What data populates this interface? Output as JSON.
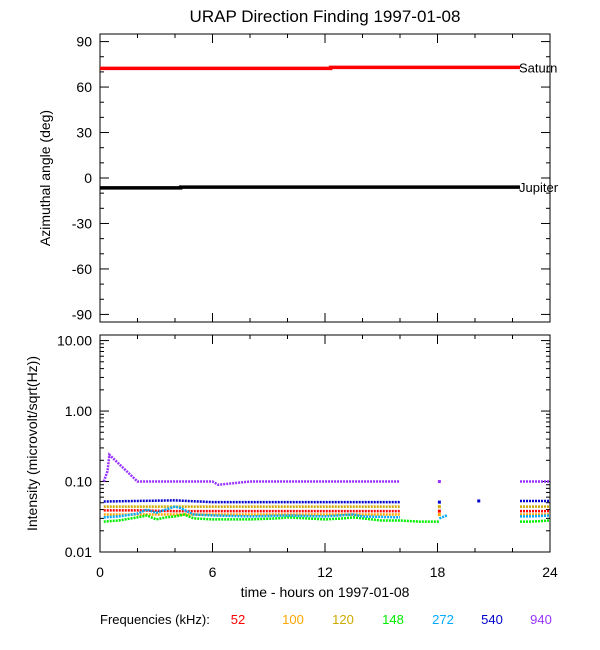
{
  "figure": {
    "title": "URAP Direction Finding  1997-01-08",
    "xlabel": "time - hours on 1997-01-08",
    "legend_label": "Frequencies (kHz):"
  },
  "chart_data": [
    {
      "type": "line",
      "title": "URAP Direction Finding  1997-01-08",
      "ylabel": "Azimuthal angle (deg)",
      "xlabel": "",
      "xlim": [
        0,
        24
      ],
      "ylim": [
        -95,
        95
      ],
      "x_ticks": [
        0,
        6,
        12,
        18,
        24
      ],
      "y_ticks": [
        90,
        60,
        30,
        0,
        -30,
        -60,
        -90
      ],
      "y_tick_labels": [
        "90",
        "60",
        "30",
        "0",
        "-30",
        "-60",
        "-90"
      ],
      "grid": false,
      "series": [
        {
          "name": "Saturn",
          "color": "#ff0000",
          "x": [
            0,
            12.3,
            12.3,
            22.4
          ],
          "y": [
            72.3,
            72.3,
            73.0,
            73.0
          ]
        },
        {
          "name": "Jupiter",
          "color": "#000000",
          "x": [
            0,
            4.3,
            4.3,
            22.4
          ],
          "y": [
            -6.5,
            -6.5,
            -6.0,
            -6.0
          ]
        }
      ]
    },
    {
      "type": "scatter",
      "ylabel": "Intensity (microvolt/sqrt(Hz))",
      "xlabel": "time - hours on 1997-01-08",
      "xlim": [
        0,
        24
      ],
      "ylim": [
        0.01,
        12
      ],
      "yscale": "log",
      "x_ticks": [
        0,
        6,
        12,
        18,
        24
      ],
      "x_tick_labels": [
        "0",
        "6",
        "12",
        "18",
        "24"
      ],
      "y_ticks": [
        10,
        1,
        0.1,
        0.01
      ],
      "y_tick_labels": [
        "10.00",
        "1.00",
        "0.10",
        "0.01"
      ],
      "grid": false,
      "legend": "bottom",
      "series": [
        {
          "name": "52",
          "color": "#ff0000",
          "x": [
            0.2,
            2,
            4,
            6,
            8,
            10,
            12,
            14,
            16,
            18.1,
            22.4,
            23,
            24
          ],
          "y": [
            0.039,
            0.039,
            0.038,
            0.038,
            0.038,
            0.038,
            0.038,
            0.038,
            0.038,
            0.038,
            0.038,
            0.038,
            0.038
          ]
        },
        {
          "name": "100",
          "color": "#ffa500",
          "x": [
            0.2,
            2,
            4,
            6,
            8,
            10,
            12,
            14,
            16,
            18.1,
            22.4,
            23,
            24
          ],
          "y": [
            0.034,
            0.034,
            0.034,
            0.034,
            0.034,
            0.034,
            0.034,
            0.034,
            0.034,
            0.034,
            0.034,
            0.034,
            0.034
          ]
        },
        {
          "name": "120",
          "color": "#ccaa00",
          "x": [
            0.2,
            2,
            4,
            6,
            8,
            10,
            12,
            14,
            16,
            18.1,
            22.4,
            23,
            24
          ],
          "y": [
            0.044,
            0.044,
            0.044,
            0.044,
            0.044,
            0.044,
            0.044,
            0.044,
            0.044,
            0.044,
            0.044,
            0.044,
            0.044
          ]
        },
        {
          "name": "148",
          "color": "#00ee00",
          "x": [
            0.2,
            1,
            2,
            2.5,
            3,
            3.5,
            4,
            4.5,
            5,
            6,
            8,
            9.5,
            10,
            11,
            12,
            13,
            13.5,
            14,
            15,
            16,
            17,
            18.1,
            22.4,
            23,
            24
          ],
          "y": [
            0.027,
            0.028,
            0.031,
            0.033,
            0.029,
            0.031,
            0.032,
            0.034,
            0.03,
            0.029,
            0.029,
            0.03,
            0.031,
            0.03,
            0.029,
            0.03,
            0.031,
            0.03,
            0.028,
            0.028,
            0.027,
            0.027,
            0.027,
            0.027,
            0.028
          ]
        },
        {
          "name": "272",
          "color": "#00aaff",
          "x": [
            0.2,
            1,
            2,
            2.5,
            3,
            3.5,
            4,
            4.3,
            4.8,
            5,
            6,
            8,
            10,
            12,
            13.5,
            14,
            16,
            18.1,
            18.5,
            22.4,
            23,
            24
          ],
          "y": [
            0.031,
            0.032,
            0.035,
            0.04,
            0.036,
            0.04,
            0.044,
            0.042,
            0.036,
            0.034,
            0.033,
            0.032,
            0.033,
            0.032,
            0.034,
            0.032,
            0.031,
            0.03,
            0.033,
            0.032,
            0.032,
            0.033
          ]
        },
        {
          "name": "540",
          "color": "#0000cc",
          "x": [
            0.2,
            2,
            4,
            6,
            8,
            10,
            12,
            14,
            16,
            18.1,
            20.2,
            22.4,
            23,
            24
          ],
          "y": [
            0.052,
            0.053,
            0.054,
            0.051,
            0.051,
            0.051,
            0.051,
            0.051,
            0.051,
            0.051,
            0.053,
            0.053,
            0.053,
            0.053
          ]
        },
        {
          "name": "940",
          "color": "#9933ff",
          "x": [
            0.2,
            0.4,
            0.5,
            2,
            4,
            6,
            6.3,
            8,
            10,
            12,
            14,
            16,
            18.1,
            22.4,
            23,
            24
          ],
          "y": [
            0.1,
            0.14,
            0.24,
            0.1,
            0.1,
            0.1,
            0.09,
            0.1,
            0.1,
            0.1,
            0.1,
            0.1,
            0.1,
            0.1,
            0.1,
            0.1
          ]
        }
      ]
    }
  ]
}
